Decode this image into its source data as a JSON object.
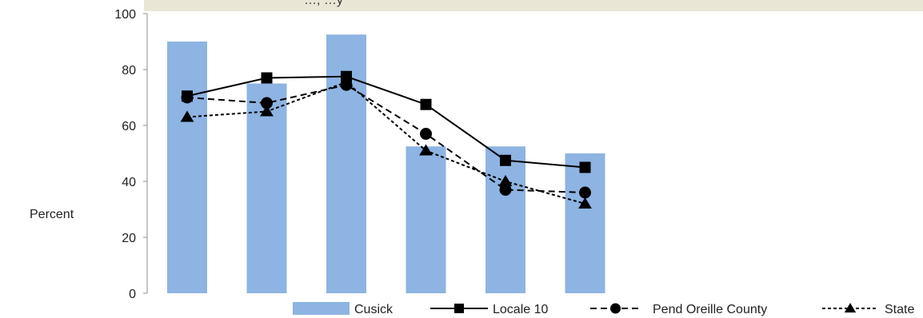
{
  "chart_data": {
    "type": "bar",
    "title": "…, …y",
    "ylabel": "Percent",
    "ylim": [
      0,
      100
    ],
    "yticks": [
      0,
      20,
      40,
      60,
      80,
      100
    ],
    "categories": [
      "",
      "",
      "",
      "",
      "",
      ""
    ],
    "grid": false,
    "legend_position": "bottom",
    "colors": {
      "bar": "#8db4e2",
      "line": "#000000",
      "title_band": "#e9e6d6"
    },
    "series": [
      {
        "name": "Cusick",
        "type": "bar",
        "values": [
          90,
          75,
          92.5,
          52.5,
          52.5,
          50
        ]
      },
      {
        "name": "Locale 10",
        "type": "line",
        "dash": "solid",
        "marker": "square",
        "values": [
          70.5,
          77,
          77.5,
          67.5,
          47.5,
          45
        ]
      },
      {
        "name": "Pend Oreille County",
        "type": "line",
        "dash": "dashed",
        "marker": "circle",
        "values": [
          70,
          68,
          74.5,
          57,
          37,
          36
        ]
      },
      {
        "name": "State",
        "type": "line",
        "dash": "dotted",
        "marker": "triangle",
        "values": [
          63,
          65,
          75.5,
          51,
          40,
          32
        ]
      }
    ]
  }
}
